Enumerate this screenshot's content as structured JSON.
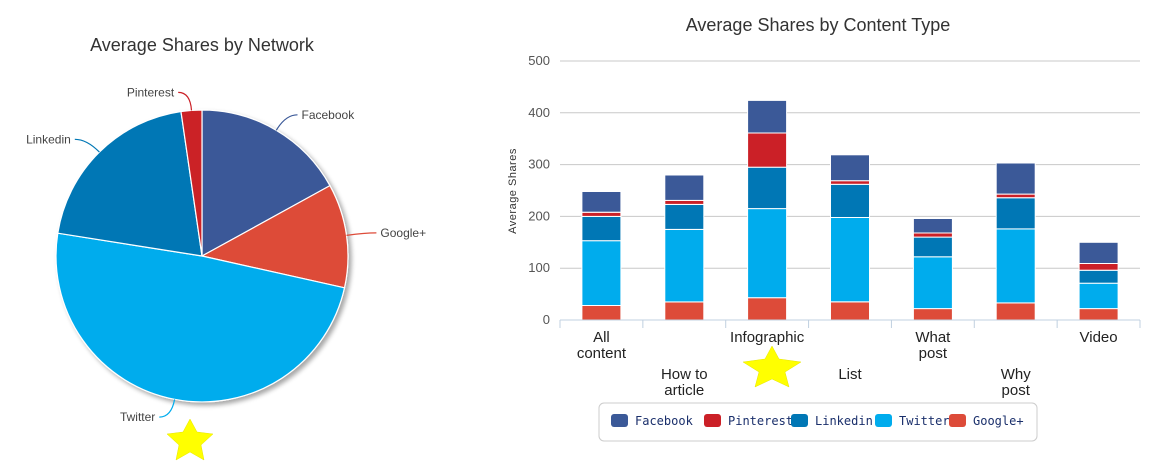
{
  "chart_data": [
    {
      "type": "pie",
      "title": "Average Shares by Network",
      "slices": [
        {
          "name": "Facebook",
          "value": 17.0,
          "color": "#3b5998"
        },
        {
          "name": "Google+",
          "value": 11.5,
          "color": "#dd4b39"
        },
        {
          "name": "Twitter",
          "value": 49.0,
          "color": "#00aced"
        },
        {
          "name": "Linkedin",
          "value": 20.2,
          "color": "#0077b5"
        },
        {
          "name": "Pinterest",
          "value": 2.3,
          "color": "#cb2027"
        }
      ]
    },
    {
      "type": "bar",
      "stacked": true,
      "title": "Average Shares by Content Type",
      "xlabel": "",
      "ylabel": "Average Shares",
      "ylim": [
        0,
        500
      ],
      "yticks": [
        0,
        100,
        200,
        300,
        400,
        500
      ],
      "grid": true,
      "legend_position": "bottom",
      "categories": [
        [
          "All",
          "content"
        ],
        [
          "How to",
          "article"
        ],
        [
          "Infographic"
        ],
        [
          "List"
        ],
        [
          "What",
          "post"
        ],
        [
          "Why",
          "post"
        ],
        [
          "Video"
        ]
      ],
      "series": [
        {
          "name": "Google+",
          "color": "#dd4b39",
          "values": [
            28,
            35,
            43,
            35,
            22,
            33,
            22
          ]
        },
        {
          "name": "Twitter",
          "color": "#00aced",
          "values": [
            125,
            140,
            172,
            163,
            100,
            143,
            49
          ]
        },
        {
          "name": "Linkedin",
          "color": "#0077b5",
          "values": [
            47,
            48,
            80,
            64,
            38,
            60,
            25
          ]
        },
        {
          "name": "Pinterest",
          "color": "#cb2027",
          "values": [
            8,
            8,
            66,
            7,
            8,
            7,
            13
          ]
        },
        {
          "name": "Facebook",
          "color": "#3b5998",
          "values": [
            40,
            49,
            63,
            50,
            28,
            60,
            41
          ]
        }
      ],
      "legend_order": [
        "Facebook",
        "Pinterest",
        "Linkedin",
        "Twitter",
        "Google+"
      ]
    }
  ]
}
